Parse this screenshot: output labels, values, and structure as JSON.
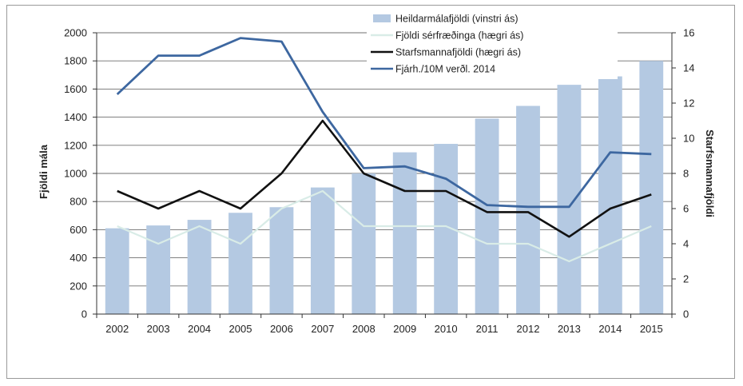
{
  "colors": {
    "bars": "#b4c9e2",
    "experts": "#d9ece7",
    "staff": "#111111",
    "budget": "#3d67a0",
    "gridline": "#6f6f6f"
  },
  "chart_data": {
    "type": "bar",
    "categories": [
      "2002",
      "2003",
      "2004",
      "2005",
      "2006",
      "2007",
      "2008",
      "2009",
      "2010",
      "2011",
      "2012",
      "2013",
      "2014",
      "2015"
    ],
    "series": [
      {
        "name": "Heildarmálafjöldi (vinstri ás)",
        "type": "bar",
        "axis": "left",
        "values": [
          610,
          630,
          670,
          720,
          760,
          900,
          1000,
          1150,
          1210,
          1390,
          1480,
          1630,
          1690,
          1800
        ]
      },
      {
        "name": "Fjöldi sérfræðinga (hægri ás)",
        "type": "line",
        "axis": "right",
        "values": [
          5,
          4,
          5,
          4,
          6,
          7,
          5,
          5,
          5,
          4,
          4,
          3,
          4,
          5
        ]
      },
      {
        "name": "Starfsmannafjöldi (hægri ás)",
        "type": "line",
        "axis": "right",
        "values": [
          7,
          6,
          7,
          6,
          8,
          11,
          8,
          7,
          7,
          5.8,
          5.8,
          4.4,
          6,
          6.8
        ]
      },
      {
        "name": "Fjárh./10M verðl. 2014",
        "type": "line",
        "axis": "right",
        "values": [
          12.5,
          14.7,
          14.7,
          15.7,
          15.5,
          11.5,
          8.3,
          8.4,
          7.7,
          6.2,
          6.1,
          6.1,
          9.2,
          9.1
        ]
      }
    ],
    "left_axis": {
      "label": "Fjöldi mála",
      "ylim": [
        0,
        2000
      ],
      "ticks": [
        "0",
        "200",
        "400",
        "600",
        "800",
        "1000",
        "1200",
        "1400",
        "1600",
        "1800",
        "2000"
      ]
    },
    "right_axis": {
      "label": "Starfsmannafjöldi",
      "ylim": [
        0,
        16
      ],
      "ticks": [
        "0",
        "2",
        "4",
        "6",
        "8",
        "10",
        "12",
        "14",
        "16"
      ]
    },
    "legend": {
      "placement": "top-right",
      "entries": [
        {
          "label": "Heildarmálafjöldi (vinstri ás)",
          "kind": "bar"
        },
        {
          "label": "Fjöldi sérfræðinga (hægri ás)",
          "kind": "line"
        },
        {
          "label": "Starfsmannafjöldi (hægri ás)",
          "kind": "line"
        },
        {
          "label": "Fjárh./10M verðl. 2014",
          "kind": "line"
        }
      ]
    },
    "grid": true
  }
}
